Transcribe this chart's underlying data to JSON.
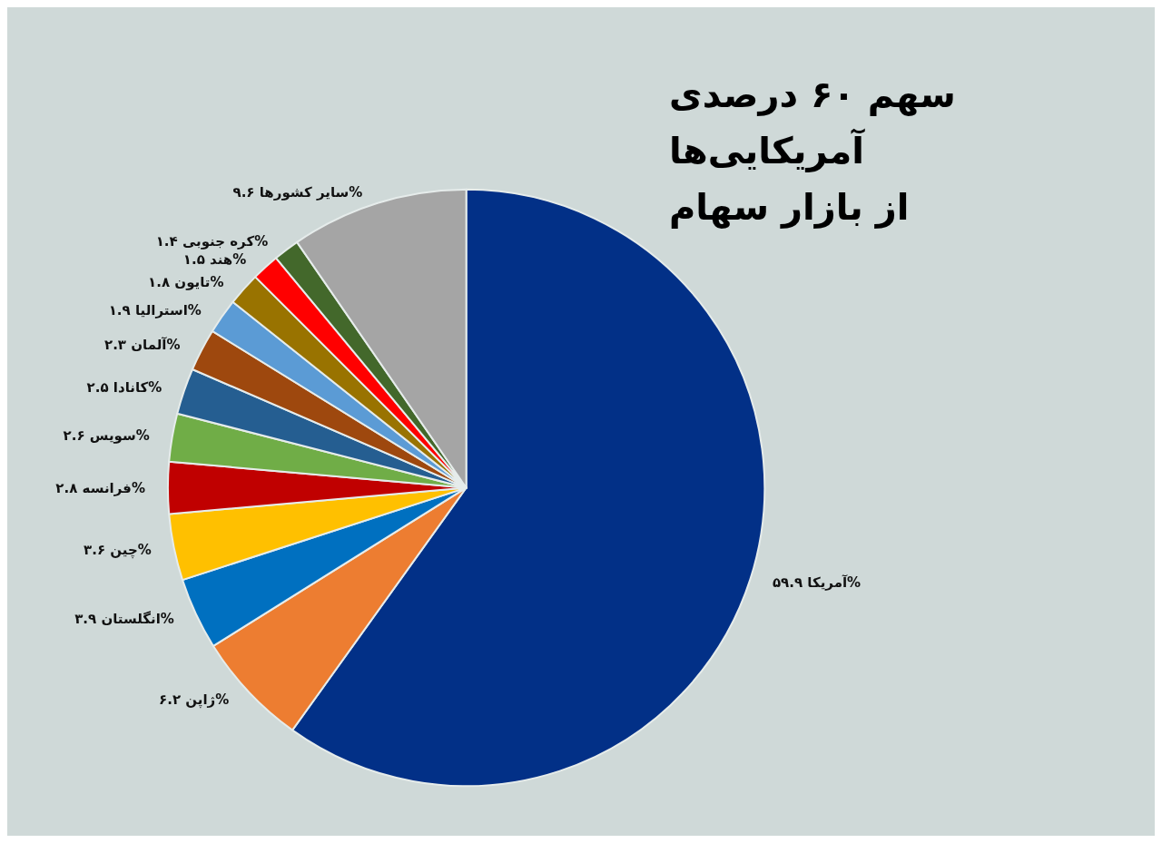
{
  "chart_data": {
    "type": "pie",
    "title": "سهم ۶۰ درصدی آمریکایی‌ها از بازار سهام",
    "categories": [
      "آمریکا",
      "ژاپن",
      "انگلستان",
      "چین",
      "فرانسه",
      "سویس",
      "کانادا",
      "آلمان",
      "استرالیا",
      "تایون",
      "هند",
      "کره جنوبی",
      "سایر کشورها"
    ],
    "values": [
      59.9,
      6.2,
      3.9,
      3.6,
      2.8,
      2.6,
      2.5,
      2.3,
      1.9,
      1.8,
      1.5,
      1.4,
      9.6
    ],
    "value_labels": [
      "۵۹.۹%",
      "۶.۲%",
      "۳.۹%",
      "۳.۶%",
      "۲.۸%",
      "۲.۶%",
      "۲.۵%",
      "۲.۳%",
      "۱.۹%",
      "۱.۸%",
      "۱.۵%",
      "۱.۴%",
      "۹.۶%"
    ],
    "colors": [
      "#023087",
      "#ed7d31",
      "#0070c0",
      "#ffc000",
      "#c00000",
      "#70ad47",
      "#255e91",
      "#9e480e",
      "#5b9bd5",
      "#997300",
      "#ff0000",
      "#43682b",
      "#a5a5a5"
    ],
    "legend": false
  }
}
